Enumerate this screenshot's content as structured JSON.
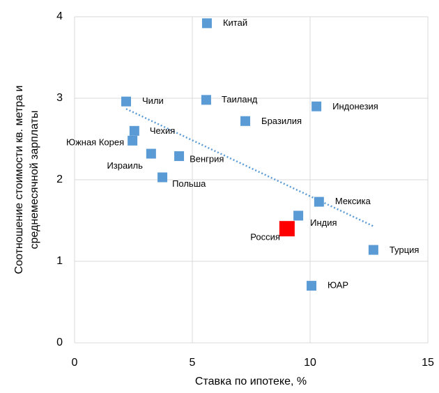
{
  "chart_data": {
    "type": "scatter",
    "xlabel": "Ставка по ипотеке, %",
    "ylabel": [
      "Соотношение стоимости кв. метра и",
      "среднемесячной зарплаты"
    ],
    "labels": [
      "Китай",
      "Таиланд",
      "Чили",
      "Индонезия",
      "Бразилия",
      "Чехия",
      "Южная Корея",
      "Израиль",
      "Венгрия",
      "Польша",
      "Мексика",
      "Индия",
      "Россия",
      "Турция",
      "ЮАР"
    ],
    "x": [
      5.62,
      5.59,
      2.19,
      10.27,
      7.25,
      2.54,
      2.46,
      3.25,
      4.44,
      3.73,
      10.38,
      9.5,
      9.02,
      12.69,
      10.06
    ],
    "y": [
      3.92,
      2.98,
      2.96,
      2.9,
      2.72,
      2.6,
      2.48,
      2.32,
      2.29,
      2.03,
      1.73,
      1.56,
      1.4,
      1.14,
      0.7
    ],
    "color": "#5b9bd5",
    "colors": [
      "#5b9bd5",
      "#5b9bd5",
      "#5b9bd5",
      "#5b9bd5",
      "#5b9bd5",
      "#5b9bd5",
      "#5b9bd5",
      "#5b9bd5",
      "#5b9bd5",
      "#5b9bd5",
      "#5b9bd5",
      "#5b9bd5",
      "#ff0000",
      "#5b9bd5",
      "#5b9bd5"
    ],
    "trendline": {
      "x": [
        2.19,
        12.69
      ],
      "y": [
        2.87,
        1.43
      ]
    },
    "xlim": [
      0,
      15
    ],
    "xticks": [
      0,
      5,
      10,
      15
    ],
    "ylim": [
      0,
      4
    ],
    "yticks": [
      0,
      1,
      2,
      3,
      4
    ],
    "grid": true
  }
}
